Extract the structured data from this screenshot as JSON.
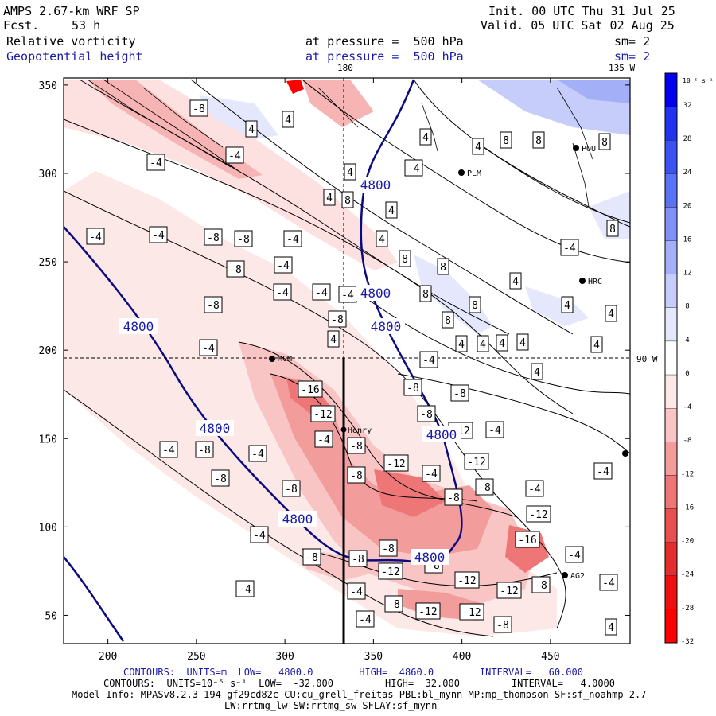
{
  "header": {
    "model_label": "AMPS 2.67-km WRF SP",
    "forecast_label": "Fcst.",
    "forecast_hours": "53 h",
    "init_label": "Init. 00 UTC Thu 31 Jul 25",
    "valid_label": "Valid. 05 UTC Sat 02 Aug 25",
    "field1_name": "Relative vorticity",
    "field2_name": "Geopotential height",
    "field1_level": "at pressure =  500 hPa",
    "field2_level": "at pressure =  500 hPa",
    "field1_smooth": "sm= 2",
    "field2_smooth": "sm= 2"
  },
  "map": {
    "lon_label_top": "180",
    "lon_label_right_top": "135 W",
    "lat_label_right": "90 W",
    "x_ticks": [
      "200",
      "250",
      "300",
      "350",
      "400",
      "450"
    ],
    "y_ticks": [
      "50",
      "100",
      "150",
      "200",
      "250",
      "300",
      "350"
    ],
    "stations": [
      "MCM",
      "Henry",
      "PLM",
      "HRC",
      "AG2",
      "POU"
    ],
    "height_contour_labels": [
      "4800"
    ],
    "vorticity_labels": [
      "-16",
      "-12",
      "-8",
      "-4",
      "4",
      "8"
    ],
    "colors": {
      "height_contour": "#0b0b80",
      "positive_vorticity": "#3355ee",
      "negative_vorticity": "#ee3030",
      "cross_section_line": "#000000"
    }
  },
  "colorbar": {
    "unit": "10⁻⁵ s⁻¹",
    "labels": [
      "32",
      "28",
      "24",
      "20",
      "16",
      "12",
      "8",
      "4",
      "0",
      "-4",
      "-8",
      "-12",
      "-16",
      "-20",
      "-24",
      "-28",
      "-32"
    ],
    "colors": [
      "#0000ee",
      "#1f33f0",
      "#3a52f2",
      "#5a72f4",
      "#7f91f6",
      "#a3b0f8",
      "#c6cdfa",
      "#e5e8fc",
      "#ffffff",
      "#fde8e8",
      "#f8c4c4",
      "#f39c9c",
      "#ee7676",
      "#e85050",
      "#e32e2e",
      "#ee1010",
      "#ff0000"
    ]
  },
  "footer": {
    "contour1": "CONTOURS:  UNITS=m  LOW=   4800.0        HIGH=  4860.0        INTERVAL=   60.000",
    "contour2": "CONTOURS:  UNITS=10⁻⁵ s⁻¹  LOW=  -32.000         HIGH=  32.000         INTERVAL=   4.0000",
    "model_info": "Model Info: MPASv8.2.3-194-gf29cd82c CU:cu_grell_freitas PBL:bl_mynn MP:mp_thompson SF:sf_noahmp 2.7",
    "model_info2": "LW:rrtmg_lw SW:rrtmg_sw SFLAY:sf_mynn"
  }
}
